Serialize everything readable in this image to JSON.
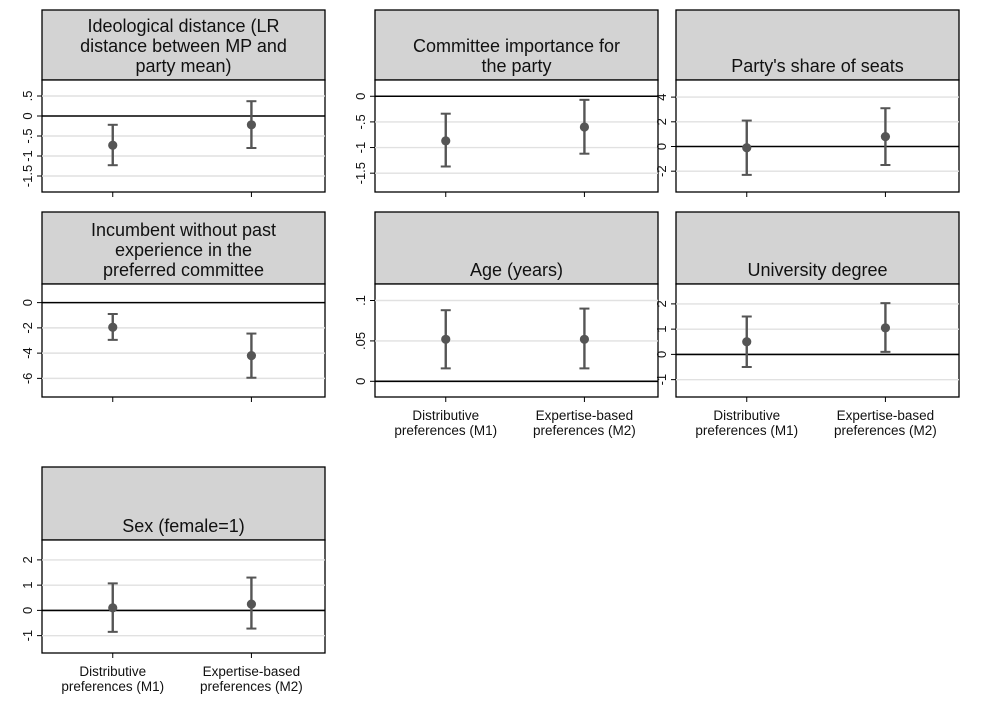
{
  "colors": {
    "header_fill": "#d3d3d3",
    "frame": "#000000",
    "grid": "#e1e1e1",
    "zero_line": "#000000",
    "marker": "#555555",
    "ci": "#555555"
  },
  "categories": [
    [
      "Distributive",
      "preferences (M1)"
    ],
    [
      "Expertise-based",
      "preferences (M2)"
    ]
  ],
  "chart_data": [
    {
      "type": "scatter",
      "title": "Ideological distance (LR distance between MP and party mean)",
      "title_lines": [
        "Ideological distance (LR",
        "distance between MP and",
        "party mean)"
      ],
      "yticks": [
        0.5,
        0,
        -0.5,
        -1,
        -1.5
      ],
      "ytick_labels": [
        ".5",
        "0",
        "-.5",
        "-1",
        "-1.5"
      ],
      "ylim": [
        -1.75,
        0.75
      ],
      "show_xlabels": false,
      "points": [
        {
          "category": "Distributive preferences (M1)",
          "estimate": -0.73,
          "ci_low": -1.23,
          "ci_high": -0.22
        },
        {
          "category": "Expertise-based preferences (M2)",
          "estimate": -0.22,
          "ci_low": -0.8,
          "ci_high": 0.37
        }
      ]
    },
    {
      "type": "scatter",
      "title": "Committee importance for the party",
      "title_lines": [
        "Committee importance for",
        "the party"
      ],
      "yticks": [
        0,
        -0.5,
        -1,
        -1.5
      ],
      "ytick_labels": [
        "0",
        "-.5",
        "-1",
        "-1.5"
      ],
      "ylim": [
        -1.75,
        0.2
      ],
      "show_xlabels": false,
      "points": [
        {
          "category": "Distributive preferences (M1)",
          "estimate": -0.87,
          "ci_low": -1.37,
          "ci_high": -0.34
        },
        {
          "category": "Expertise-based preferences (M2)",
          "estimate": -0.6,
          "ci_low": -1.12,
          "ci_high": -0.07
        }
      ]
    },
    {
      "type": "scatter",
      "title": "Party's share of seats",
      "title_lines": [
        "Party's share of seats"
      ],
      "yticks": [
        4,
        2,
        0,
        -2
      ],
      "ytick_labels": [
        "4",
        "2",
        "0",
        "-2"
      ],
      "ylim": [
        -3.2,
        4.9
      ],
      "show_xlabels": false,
      "points": [
        {
          "category": "Distributive preferences (M1)",
          "estimate": -0.1,
          "ci_low": -2.3,
          "ci_high": 2.1
        },
        {
          "category": "Expertise-based preferences (M2)",
          "estimate": 0.8,
          "ci_low": -1.5,
          "ci_high": 3.1
        }
      ]
    },
    {
      "type": "scatter",
      "title": "Incumbent without past experience in the preferred committee",
      "title_lines": [
        "Incumbent without past",
        "experience in the",
        "preferred committee"
      ],
      "yticks": [
        0,
        -2,
        -4,
        -6
      ],
      "ytick_labels": [
        "0",
        "-2",
        "-4",
        "-6"
      ],
      "ylim": [
        -7,
        1
      ],
      "show_xlabels": false,
      "points": [
        {
          "category": "Distributive preferences (M1)",
          "estimate": -1.95,
          "ci_low": -2.95,
          "ci_high": -0.9
        },
        {
          "category": "Expertise-based preferences (M2)",
          "estimate": -4.2,
          "ci_low": -5.95,
          "ci_high": -2.45
        }
      ]
    },
    {
      "type": "scatter",
      "title": "Age (years)",
      "title_lines": [
        "Age (years)"
      ],
      "yticks": [
        0.1,
        0.05,
        0
      ],
      "ytick_labels": [
        ".1",
        ".05",
        "0"
      ],
      "ylim": [
        -0.012,
        0.113
      ],
      "show_xlabels": true,
      "points": [
        {
          "category": "Distributive preferences (M1)",
          "estimate": 0.052,
          "ci_low": 0.016,
          "ci_high": 0.088
        },
        {
          "category": "Expertise-based preferences (M2)",
          "estimate": 0.052,
          "ci_low": 0.016,
          "ci_high": 0.09
        }
      ]
    },
    {
      "type": "scatter",
      "title": "University degree",
      "title_lines": [
        "University degree"
      ],
      "yticks": [
        2,
        1,
        0,
        -1
      ],
      "ytick_labels": [
        "2",
        "1",
        "0",
        "-1"
      ],
      "ylim": [
        -1.45,
        2.55
      ],
      "show_xlabels": true,
      "points": [
        {
          "category": "Distributive preferences (M1)",
          "estimate": 0.5,
          "ci_low": -0.5,
          "ci_high": 1.5
        },
        {
          "category": "Expertise-based preferences (M2)",
          "estimate": 1.05,
          "ci_low": 0.1,
          "ci_high": 2.03
        }
      ]
    },
    {
      "type": "scatter",
      "title": "Sex (female=1)",
      "title_lines": [
        "Sex (female=1)"
      ],
      "yticks": [
        2,
        1,
        0,
        -1
      ],
      "ytick_labels": [
        "2",
        "1",
        "0",
        "-1"
      ],
      "ylim": [
        -1.45,
        2.55
      ],
      "show_xlabels": true,
      "points": [
        {
          "category": "Distributive preferences (M1)",
          "estimate": 0.1,
          "ci_low": -0.85,
          "ci_high": 1.07
        },
        {
          "category": "Expertise-based preferences (M2)",
          "estimate": 0.25,
          "ci_low": -0.72,
          "ci_high": 1.3
        }
      ]
    }
  ]
}
